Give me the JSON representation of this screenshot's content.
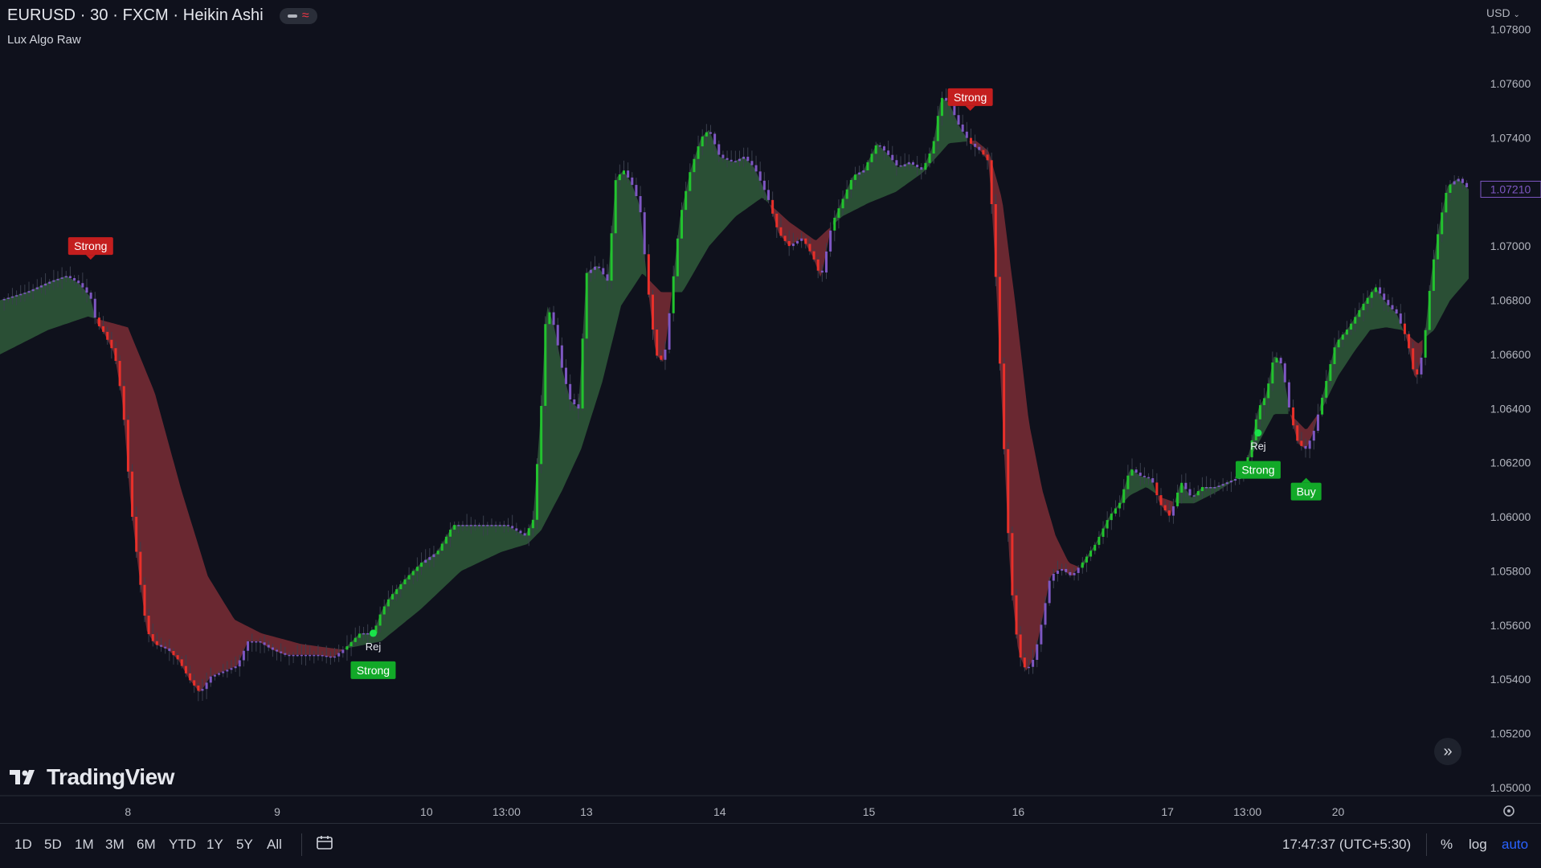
{
  "header": {
    "symbol_title": "EURUSD · 30 · FXCM · Heikin Ashi",
    "indicator_title": "Lux Algo Raw",
    "currency": "USD"
  },
  "chart_data": {
    "type": "candlestick",
    "chart_style": "Heikin Ashi",
    "y_ticks": [
      "1.07800",
      "1.07600",
      "1.07400",
      "1.07200",
      "1.07000",
      "1.06800",
      "1.06600",
      "1.06400",
      "1.06200",
      "1.06000",
      "1.05800",
      "1.05600",
      "1.05400",
      "1.05200",
      "1.05000"
    ],
    "y_range": [
      1.0497,
      1.0782
    ],
    "current_price": "1.07210",
    "x_ticks": [
      {
        "label": "8",
        "x": 0.0
      },
      {
        "label": "9",
        "x": 5.6
      },
      {
        "label": "10",
        "x": 11.2
      },
      {
        "label": "13:00",
        "x": 14.2
      },
      {
        "label": "13",
        "x": 17.2
      },
      {
        "label": "14",
        "x": 22.2
      },
      {
        "label": "15",
        "x": 27.8
      },
      {
        "label": "16",
        "x": 33.4
      },
      {
        "label": "17",
        "x": 39.0
      },
      {
        "label": "13:00",
        "x": 42.0
      },
      {
        "label": "20",
        "x": 45.4
      }
    ],
    "x_range": [
      -4.8,
      50.6
    ],
    "path_points": [
      [
        -4.8,
        1.068
      ],
      [
        -3.8,
        1.0683
      ],
      [
        -2.9,
        1.0687
      ],
      [
        -2.3,
        1.0689
      ],
      [
        -1.8,
        1.0686
      ],
      [
        -1.4,
        1.0681
      ],
      [
        -1.2,
        1.0672
      ],
      [
        -0.9,
        1.0668
      ],
      [
        -0.5,
        1.066
      ],
      [
        -0.2,
        1.0642
      ],
      [
        0.1,
        1.0605
      ],
      [
        0.4,
        1.058
      ],
      [
        0.7,
        1.0558
      ],
      [
        1.0,
        1.0553
      ],
      [
        1.5,
        1.0551
      ],
      [
        1.9,
        1.0547
      ],
      [
        2.3,
        1.054
      ],
      [
        2.7,
        1.0535
      ],
      [
        3.1,
        1.0541
      ],
      [
        3.6,
        1.0543
      ],
      [
        4.1,
        1.0545
      ],
      [
        4.5,
        1.0554
      ],
      [
        4.9,
        1.0554
      ],
      [
        5.4,
        1.0551
      ],
      [
        5.9,
        1.0549
      ],
      [
        6.6,
        1.0549
      ],
      [
        7.1,
        1.0549
      ],
      [
        7.7,
        1.0548
      ],
      [
        8.2,
        1.0552
      ],
      [
        8.7,
        1.0557
      ],
      [
        9.2,
        1.0557
      ],
      [
        9.5,
        1.0565
      ],
      [
        9.8,
        1.057
      ],
      [
        10.4,
        1.0577
      ],
      [
        11.0,
        1.0583
      ],
      [
        11.6,
        1.0587
      ],
      [
        12.2,
        1.0597
      ],
      [
        12.9,
        1.0597
      ],
      [
        13.5,
        1.0597
      ],
      [
        14.2,
        1.0597
      ],
      [
        14.9,
        1.0593
      ],
      [
        15.2,
        1.0599
      ],
      [
        15.5,
        1.064
      ],
      [
        15.7,
        1.0679
      ],
      [
        16.0,
        1.067
      ],
      [
        16.3,
        1.0654
      ],
      [
        16.6,
        1.0643
      ],
      [
        16.9,
        1.064
      ],
      [
        17.2,
        1.069
      ],
      [
        17.6,
        1.0693
      ],
      [
        18.0,
        1.0687
      ],
      [
        18.3,
        1.0725
      ],
      [
        18.6,
        1.0728
      ],
      [
        18.9,
        1.0723
      ],
      [
        19.2,
        1.0715
      ],
      [
        19.5,
        1.0685
      ],
      [
        19.8,
        1.066
      ],
      [
        20.1,
        1.0657
      ],
      [
        20.4,
        1.0683
      ],
      [
        20.7,
        1.071
      ],
      [
        21.1,
        1.0728
      ],
      [
        21.5,
        1.074
      ],
      [
        21.8,
        1.0743
      ],
      [
        22.2,
        1.0733
      ],
      [
        22.7,
        1.0731
      ],
      [
        23.1,
        1.0733
      ],
      [
        23.5,
        1.0729
      ],
      [
        24.0,
        1.0718
      ],
      [
        24.4,
        1.0705
      ],
      [
        24.8,
        1.07
      ],
      [
        25.3,
        1.0703
      ],
      [
        25.7,
        1.0696
      ],
      [
        26.0,
        1.0688
      ],
      [
        26.4,
        1.0708
      ],
      [
        26.8,
        1.0717
      ],
      [
        27.2,
        1.0726
      ],
      [
        27.6,
        1.0728
      ],
      [
        28.1,
        1.0738
      ],
      [
        28.5,
        1.0734
      ],
      [
        28.9,
        1.0729
      ],
      [
        29.3,
        1.0731
      ],
      [
        29.8,
        1.0728
      ],
      [
        30.2,
        1.0737
      ],
      [
        30.5,
        1.0755
      ],
      [
        30.8,
        1.0753
      ],
      [
        31.2,
        1.0744
      ],
      [
        31.6,
        1.0738
      ],
      [
        32.0,
        1.0735
      ],
      [
        32.3,
        1.0731
      ],
      [
        32.5,
        1.07
      ],
      [
        32.8,
        1.0638
      ],
      [
        33.1,
        1.0578
      ],
      [
        33.4,
        1.055
      ],
      [
        33.7,
        1.0543
      ],
      [
        34.0,
        1.0548
      ],
      [
        34.3,
        1.0562
      ],
      [
        34.6,
        1.0578
      ],
      [
        35.0,
        1.0581
      ],
      [
        35.4,
        1.0578
      ],
      [
        35.8,
        1.0583
      ],
      [
        36.3,
        1.059
      ],
      [
        36.8,
        1.06
      ],
      [
        37.2,
        1.0605
      ],
      [
        37.6,
        1.0618
      ],
      [
        38.0,
        1.0615
      ],
      [
        38.4,
        1.0614
      ],
      [
        38.7,
        1.0605
      ],
      [
        39.1,
        1.06
      ],
      [
        39.5,
        1.0613
      ],
      [
        39.9,
        1.0607
      ],
      [
        40.3,
        1.0611
      ],
      [
        40.8,
        1.0611
      ],
      [
        41.3,
        1.0613
      ],
      [
        41.8,
        1.0615
      ],
      [
        42.1,
        1.0625
      ],
      [
        42.4,
        1.064
      ],
      [
        42.7,
        1.0645
      ],
      [
        43.0,
        1.066
      ],
      [
        43.3,
        1.0656
      ],
      [
        43.6,
        1.0638
      ],
      [
        43.9,
        1.0627
      ],
      [
        44.2,
        1.0625
      ],
      [
        44.5,
        1.0632
      ],
      [
        44.9,
        1.0648
      ],
      [
        45.3,
        1.0664
      ],
      [
        45.8,
        1.067
      ],
      [
        46.3,
        1.0678
      ],
      [
        46.8,
        1.0685
      ],
      [
        47.2,
        1.0679
      ],
      [
        47.6,
        1.0675
      ],
      [
        48.0,
        1.0665
      ],
      [
        48.3,
        1.065
      ],
      [
        48.6,
        1.0662
      ],
      [
        48.9,
        1.069
      ],
      [
        49.2,
        1.0708
      ],
      [
        49.5,
        1.0722
      ],
      [
        49.9,
        1.0725
      ],
      [
        50.3,
        1.0721
      ]
    ],
    "cloud_points": [
      [
        -4.8,
        1.066
      ],
      [
        -3.0,
        1.0669
      ],
      [
        -1.5,
        1.0674
      ],
      [
        0.0,
        1.067
      ],
      [
        1.0,
        1.0646
      ],
      [
        2.0,
        1.061
      ],
      [
        3.0,
        1.0578
      ],
      [
        4.0,
        1.0562
      ],
      [
        5.0,
        1.0557
      ],
      [
        6.5,
        1.0553
      ],
      [
        8.0,
        1.0551
      ],
      [
        9.5,
        1.0554
      ],
      [
        11.0,
        1.0566
      ],
      [
        12.5,
        1.058
      ],
      [
        14.0,
        1.0587
      ],
      [
        15.0,
        1.059
      ],
      [
        15.5,
        1.0595
      ],
      [
        16.3,
        1.061
      ],
      [
        17.0,
        1.0625
      ],
      [
        17.8,
        1.065
      ],
      [
        18.5,
        1.0678
      ],
      [
        19.3,
        1.069
      ],
      [
        20.0,
        1.0683
      ],
      [
        20.8,
        1.0683
      ],
      [
        21.8,
        1.07
      ],
      [
        22.8,
        1.0711
      ],
      [
        23.8,
        1.0718
      ],
      [
        24.8,
        1.0709
      ],
      [
        25.8,
        1.0702
      ],
      [
        26.8,
        1.0711
      ],
      [
        27.8,
        1.0716
      ],
      [
        28.8,
        1.072
      ],
      [
        29.8,
        1.0727
      ],
      [
        30.8,
        1.0738
      ],
      [
        31.8,
        1.0739
      ],
      [
        32.3,
        1.0735
      ],
      [
        32.8,
        1.0717
      ],
      [
        33.3,
        1.0678
      ],
      [
        33.8,
        1.0635
      ],
      [
        34.3,
        1.061
      ],
      [
        34.8,
        1.0593
      ],
      [
        35.3,
        1.0583
      ],
      [
        35.8,
        1.0581
      ],
      [
        36.4,
        1.0591
      ],
      [
        37.0,
        1.0602
      ],
      [
        37.6,
        1.0608
      ],
      [
        38.2,
        1.0611
      ],
      [
        38.8,
        1.0607
      ],
      [
        39.4,
        1.0605
      ],
      [
        40.0,
        1.0605
      ],
      [
        40.8,
        1.0609
      ],
      [
        41.6,
        1.0614
      ],
      [
        42.4,
        1.0627
      ],
      [
        43.0,
        1.0638
      ],
      [
        43.6,
        1.0638
      ],
      [
        44.2,
        1.0632
      ],
      [
        44.8,
        1.064
      ],
      [
        45.4,
        1.0652
      ],
      [
        46.0,
        1.0661
      ],
      [
        46.6,
        1.0669
      ],
      [
        47.2,
        1.067
      ],
      [
        47.8,
        1.0669
      ],
      [
        48.4,
        1.0664
      ],
      [
        49.0,
        1.0669
      ],
      [
        49.6,
        1.068
      ],
      [
        50.3,
        1.0688
      ]
    ],
    "signals": [
      {
        "label": "Strong",
        "type": "sell",
        "x": -1.4,
        "y": 1.0692
      },
      {
        "label": "Strong",
        "type": "sell",
        "x": 31.6,
        "y": 1.0747
      },
      {
        "label": "Strong",
        "type": "buy",
        "x": 9.2,
        "y": 1.0557,
        "dot_label": "Rej"
      },
      {
        "label": "Strong",
        "type": "buy",
        "x": 42.4,
        "y": 1.0631,
        "dot_label": "Rej"
      },
      {
        "label": "Buy",
        "type": "buy",
        "x": 44.2,
        "y": 1.0623
      }
    ],
    "colors": {
      "background": "#0f111c",
      "bull": "#22c32e",
      "bear": "#e8302a",
      "neutral": "#7e57c2",
      "cloud_bull": "#2f5a3a",
      "cloud_bear": "#7a2d35",
      "signal_buy": "#12a928",
      "signal_sell": "#c41e1e",
      "price_label": "#7e57c2"
    }
  },
  "branding": {
    "logo": "TradingView"
  },
  "bottom_bar": {
    "ranges": [
      "1D",
      "5D",
      "1M",
      "3M",
      "6M",
      "YTD",
      "1Y",
      "5Y",
      "All"
    ],
    "time": "17:47:37 (UTC+5:30)",
    "percent": "%",
    "log": "log",
    "auto": "auto"
  }
}
